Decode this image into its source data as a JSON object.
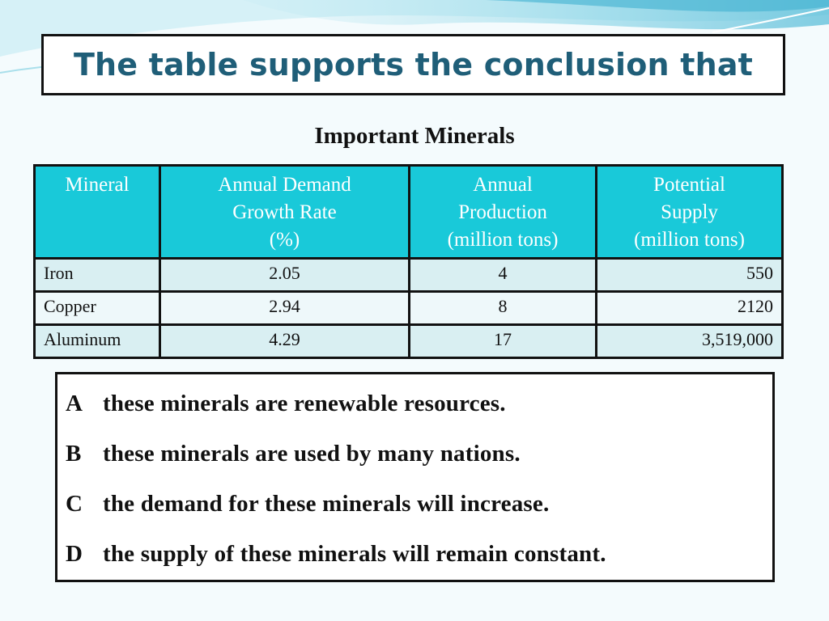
{
  "slide": {
    "title": "The table supports the conclusion that"
  },
  "table": {
    "title": "Important Minerals",
    "columns": [
      [
        "Mineral"
      ],
      [
        "Annual Demand",
        "Growth Rate",
        "(%)"
      ],
      [
        "Annual",
        "Production",
        "(million tons)"
      ],
      [
        "Potential",
        "Supply",
        "(million tons)"
      ]
    ],
    "rows": [
      {
        "mineral": "Iron",
        "growth_rate": "2.05",
        "production": "4",
        "supply": "550"
      },
      {
        "mineral": "Copper",
        "growth_rate": "2.94",
        "production": "8",
        "supply": "2120"
      },
      {
        "mineral": "Aluminum",
        "growth_rate": "4.29",
        "production": "17",
        "supply": "3,519,000"
      }
    ]
  },
  "answers": [
    {
      "letter": "A",
      "text": "these minerals are renewable resources."
    },
    {
      "letter": "B",
      "text": "these minerals are used by many nations."
    },
    {
      "letter": "C",
      "text": "the demand for these minerals will increase."
    },
    {
      "letter": "D",
      "text": "the supply of these minerals will remain constant."
    }
  ],
  "colors": {
    "title_text": "#1f5e78",
    "header_fill": "#19c9d9",
    "row_fill": "#d9eff2",
    "row_alt_fill": "#eef8fa"
  }
}
